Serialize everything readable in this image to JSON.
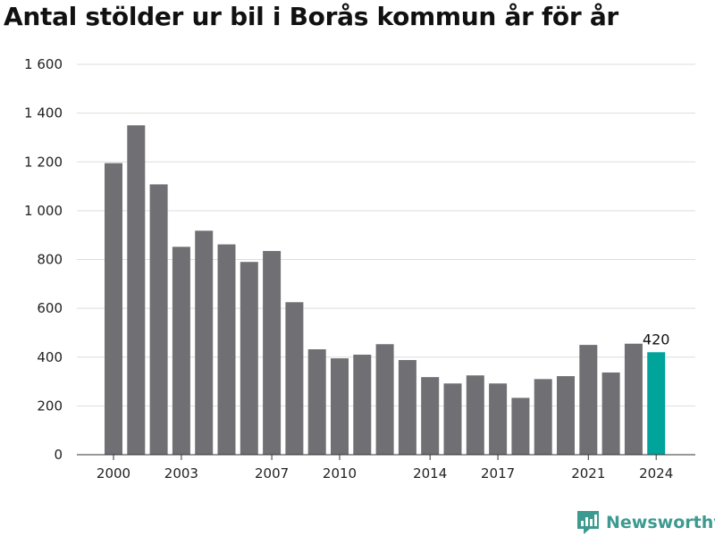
{
  "title": "Antal stölder ur bil i Borås kommun år för år",
  "brand": {
    "name": "Newsworthy",
    "icon": "newsworthy-logo-icon",
    "color": "#3d9a90"
  },
  "chart_data": {
    "type": "bar",
    "title": "Antal stölder ur bil i Borås kommun år för år",
    "xlabel": "",
    "ylabel": "",
    "categories": [
      2000,
      2001,
      2002,
      2003,
      2004,
      2005,
      2006,
      2007,
      2008,
      2009,
      2010,
      2011,
      2012,
      2013,
      2014,
      2015,
      2016,
      2017,
      2018,
      2019,
      2020,
      2021,
      2022,
      2023,
      2024
    ],
    "values": [
      1195,
      1350,
      1108,
      852,
      918,
      862,
      790,
      835,
      625,
      432,
      395,
      410,
      453,
      388,
      318,
      292,
      325,
      292,
      233,
      310,
      322,
      450,
      337,
      455,
      420
    ],
    "x_tick_labels": [
      "2000",
      "2003",
      "2007",
      "2010",
      "2014",
      "2017",
      "2021",
      "2024"
    ],
    "y_tick_labels": [
      "0",
      "200",
      "400",
      "600",
      "800",
      "1 000",
      "1 200",
      "1 400",
      "1 600"
    ],
    "y_ticks": [
      0,
      200,
      400,
      600,
      800,
      1000,
      1200,
      1400,
      1600
    ],
    "ylim": [
      0,
      1600
    ],
    "grid": true,
    "legend": "none",
    "highlight_category": 2024,
    "highlight_label": "420",
    "colors": {
      "bar": "#707074",
      "highlight": "#00a49b",
      "grid": "#dddddd",
      "axis": "#333333"
    }
  }
}
